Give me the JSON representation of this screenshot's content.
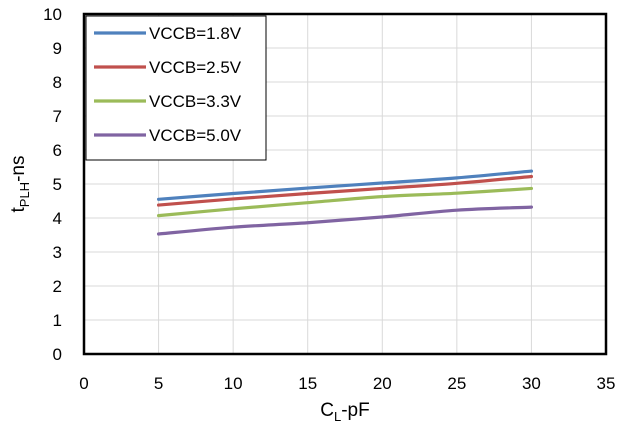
{
  "chart_data": {
    "type": "line",
    "title": "",
    "xlabel": {
      "main": "C",
      "sub": "L",
      "rest": "-pF"
    },
    "ylabel": {
      "main": "t",
      "sub": "PLH",
      "rest": "-ns"
    },
    "xlim": [
      0,
      35
    ],
    "ylim": [
      0,
      10
    ],
    "xticks": [
      0,
      5,
      10,
      15,
      20,
      25,
      30,
      35
    ],
    "yticks": [
      0,
      1,
      2,
      3,
      4,
      5,
      6,
      7,
      8,
      9,
      10
    ],
    "grid": true,
    "legend_position": "top-left",
    "series": [
      {
        "name": "VCCB=1.8V",
        "color": "#4F81BD",
        "x": [
          5,
          10,
          15,
          20,
          25,
          30
        ],
        "y": [
          4.55,
          4.72,
          4.88,
          5.03,
          5.18,
          5.38
        ]
      },
      {
        "name": "VCCB=2.5V",
        "color": "#C0504D",
        "x": [
          5,
          10,
          15,
          20,
          25,
          30
        ],
        "y": [
          4.38,
          4.56,
          4.72,
          4.87,
          5.02,
          5.22
        ]
      },
      {
        "name": "VCCB=3.3V",
        "color": "#9BBB59",
        "x": [
          5,
          10,
          15,
          20,
          25,
          30
        ],
        "y": [
          4.07,
          4.27,
          4.45,
          4.63,
          4.73,
          4.87
        ]
      },
      {
        "name": "VCCB=5.0V",
        "color": "#8064A2",
        "x": [
          5,
          10,
          15,
          20,
          25,
          30
        ],
        "y": [
          3.53,
          3.73,
          3.86,
          4.03,
          4.23,
          4.32
        ]
      }
    ]
  }
}
